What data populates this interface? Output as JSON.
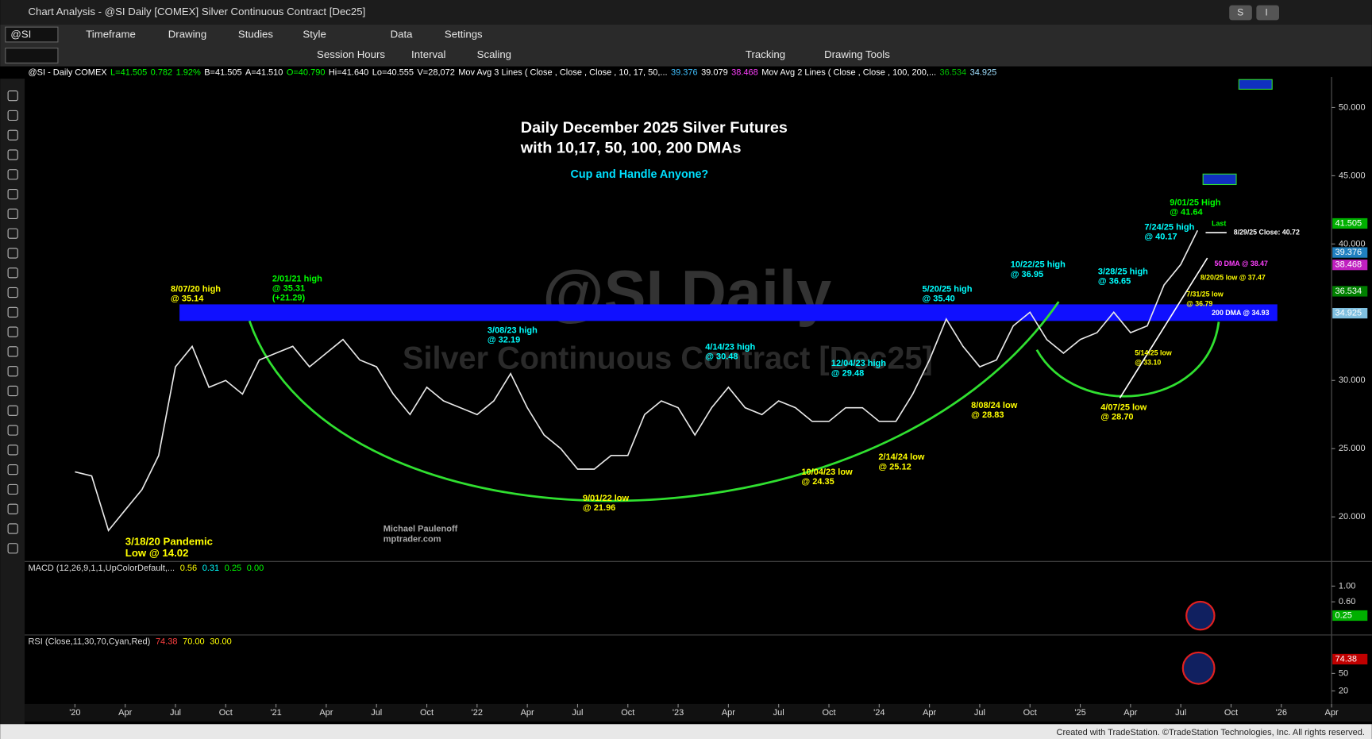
{
  "window": {
    "title": "Chart Analysis - @SI Daily [COMEX] Silver Continuous Contract [Dec25]",
    "buttons": [
      "S",
      "I"
    ],
    "footer": "Created with TradeStation. ©TradeStation Technologies, Inc. All rights reserved."
  },
  "toolbar": {
    "symbol": "@SI",
    "row1": [
      "Timeframe",
      "Drawing",
      "Studies",
      "Style",
      "Data",
      "Settings"
    ],
    "row2": [
      "Session Hours",
      "Interval",
      "Scaling",
      "Tracking",
      "Drawing Tools"
    ]
  },
  "info": [
    {
      "text": "@SI - Daily  COMEX",
      "color": "#ffffff"
    },
    {
      "text": "L=41.505",
      "color": "#00ff00"
    },
    {
      "text": "0.782",
      "color": "#00ff00"
    },
    {
      "text": "1.92%",
      "color": "#00ff00"
    },
    {
      "text": "B=41.505",
      "color": "#ffffff"
    },
    {
      "text": "A=41.510",
      "color": "#ffffff"
    },
    {
      "text": "O=40.790",
      "color": "#00ff00"
    },
    {
      "text": "Hi=41.640",
      "color": "#ffffff"
    },
    {
      "text": "Lo=40.555",
      "color": "#ffffff"
    },
    {
      "text": "V=28,072",
      "color": "#ffffff"
    },
    {
      "text": "Mov Avg 3 Lines (  Close ,  Close ,  Close ,  10, 17, 50,...",
      "color": "#ffffff"
    },
    {
      "text": "39.376",
      "color": "#40c0ff"
    },
    {
      "text": "39.079",
      "color": "#ffffff"
    },
    {
      "text": "38.468",
      "color": "#ff40ff"
    },
    {
      "text": "Mov Avg 2 Lines (        Close ,      Close ,  100, 200,...",
      "color": "#ffffff"
    },
    {
      "text": "36.534",
      "color": "#00c000"
    },
    {
      "text": "34.925",
      "color": "#a0e0ff"
    }
  ],
  "chart_data": {
    "type": "line",
    "title": "Daily December 2025 Silver Futures",
    "subtitle": "with 10,17, 50, 100, 200 DMAs",
    "question": "Cup and Handle Anyone?",
    "watermark": [
      "@SI Daily",
      "Silver Continuous Contract [Dec25]"
    ],
    "credit": [
      "Michael Paulenoff",
      "mptrader.com"
    ],
    "color": "#e8e8e8",
    "x": [
      "2020-01",
      "2020-02",
      "2020-03",
      "2020-04",
      "2020-05",
      "2020-06",
      "2020-07",
      "2020-08",
      "2020-09",
      "2020-10",
      "2020-11",
      "2020-12",
      "2021-01",
      "2021-02",
      "2021-03",
      "2021-04",
      "2021-05",
      "2021-06",
      "2021-07",
      "2021-08",
      "2021-09",
      "2021-10",
      "2021-11",
      "2021-12",
      "2022-01",
      "2022-02",
      "2022-03",
      "2022-04",
      "2022-05",
      "2022-06",
      "2022-07",
      "2022-08",
      "2022-09",
      "2022-10",
      "2022-11",
      "2022-12",
      "2023-01",
      "2023-02",
      "2023-03",
      "2023-04",
      "2023-05",
      "2023-06",
      "2023-07",
      "2023-08",
      "2023-09",
      "2023-10",
      "2023-11",
      "2023-12",
      "2024-01",
      "2024-02",
      "2024-03",
      "2024-04",
      "2024-05",
      "2024-06",
      "2024-07",
      "2024-08",
      "2024-09",
      "2024-10",
      "2024-11",
      "2024-12",
      "2025-01",
      "2025-02",
      "2025-03",
      "2025-04",
      "2025-05",
      "2025-06",
      "2025-07",
      "2025-08"
    ],
    "values": [
      23.3,
      23.0,
      19.0,
      20.5,
      22.0,
      24.5,
      31.0,
      32.5,
      29.5,
      30.0,
      29.0,
      31.5,
      32.0,
      32.5,
      31.0,
      32.0,
      33.0,
      31.5,
      31.0,
      29.0,
      27.5,
      29.5,
      28.5,
      28.0,
      27.5,
      28.5,
      30.5,
      28.0,
      26.0,
      25.0,
      23.5,
      23.5,
      24.5,
      24.5,
      27.5,
      28.5,
      28.0,
      26.0,
      28.0,
      29.5,
      28.0,
      27.5,
      28.5,
      28.0,
      27.0,
      27.0,
      28.0,
      28.0,
      27.0,
      27.0,
      29.0,
      31.5,
      34.5,
      32.5,
      31.0,
      31.5,
      34.0,
      35.0,
      33.0,
      32.0,
      33.0,
      33.5,
      35.0,
      33.5,
      34.0,
      37.0,
      38.5,
      41.0
    ],
    "xlim": [
      "2019-10",
      "2026-04"
    ],
    "xticks": [
      {
        "value": "2020-01",
        "label": "'20"
      },
      {
        "value": "2020-04",
        "label": "Apr"
      },
      {
        "value": "2020-07",
        "label": "Jul"
      },
      {
        "value": "2020-10",
        "label": "Oct"
      },
      {
        "value": "2021-01",
        "label": "'21"
      },
      {
        "value": "2021-04",
        "label": "Apr"
      },
      {
        "value": "2021-07",
        "label": "Jul"
      },
      {
        "value": "2021-10",
        "label": "Oct"
      },
      {
        "value": "2022-01",
        "label": "'22"
      },
      {
        "value": "2022-04",
        "label": "Apr"
      },
      {
        "value": "2022-07",
        "label": "Jul"
      },
      {
        "value": "2022-10",
        "label": "Oct"
      },
      {
        "value": "2023-01",
        "label": "'23"
      },
      {
        "value": "2023-04",
        "label": "Apr"
      },
      {
        "value": "2023-07",
        "label": "Jul"
      },
      {
        "value": "2023-10",
        "label": "Oct"
      },
      {
        "value": "2024-01",
        "label": "'24"
      },
      {
        "value": "2024-04",
        "label": "Apr"
      },
      {
        "value": "2024-07",
        "label": "Jul"
      },
      {
        "value": "2024-10",
        "label": "Oct"
      },
      {
        "value": "2025-01",
        "label": "'25"
      },
      {
        "value": "2025-04",
        "label": "Apr"
      },
      {
        "value": "2025-07",
        "label": "Jul"
      },
      {
        "value": "2025-10",
        "label": "Oct"
      },
      {
        "value": "2026-01",
        "label": "'26"
      },
      {
        "value": "2026-04",
        "label": "Apr"
      }
    ],
    "ylim": [
      16.86,
      52.24
    ],
    "yticks": [
      {
        "value": 20,
        "label": "20.000"
      },
      {
        "value": 25,
        "label": "25.000"
      },
      {
        "value": 30,
        "label": "30.000"
      },
      {
        "value": 40,
        "label": "40.000"
      },
      {
        "value": 45,
        "label": "45.000"
      },
      {
        "value": 50,
        "label": "50.000"
      }
    ],
    "price_markers": [
      {
        "value": 41.505,
        "color": "#00b000"
      },
      {
        "value": 39.376,
        "color": "#2080c0"
      },
      {
        "value": 38.468,
        "color": "#c020c0"
      },
      {
        "value": 36.534,
        "color": "#008000"
      },
      {
        "value": 34.925,
        "color": "#80c0e0"
      }
    ],
    "annotations": [
      {
        "lines": [
          "8/07/20 high",
          "@ 35.14"
        ],
        "color": "#ffff00"
      },
      {
        "lines": [
          "2/01/21 high",
          "@ 35.31",
          "(+21.29)"
        ],
        "color": "#00ff00"
      },
      {
        "lines": [
          "3/08/23 high",
          "@ 32.19"
        ],
        "color": "#00ffff"
      },
      {
        "lines": [
          "4/14/23 high",
          "@ 30.48"
        ],
        "color": "#00ffff"
      },
      {
        "lines": [
          "12/04/23 high",
          "@ 29.48"
        ],
        "color": "#00ffff"
      },
      {
        "lines": [
          "5/20/25 high",
          "@ 35.40"
        ],
        "color": "#00ffff"
      },
      {
        "lines": [
          "10/22/25 high",
          "@ 36.95"
        ],
        "color": "#00ffff"
      },
      {
        "lines": [
          "3/28/25 high",
          "@ 36.65"
        ],
        "color": "#00ffff"
      },
      {
        "lines": [
          "7/24/25 high",
          "@ 40.17"
        ],
        "color": "#00ffff"
      },
      {
        "lines": [
          "9/01/25 High",
          "@ 41.64"
        ],
        "color": "#00ff00"
      },
      {
        "lines": [
          "3/18/20 Pandemic",
          "Low @  14.02"
        ],
        "color": "#ffff00"
      },
      {
        "lines": [
          "9/01/22 low",
          "@ 21.96"
        ],
        "color": "#ffff00"
      },
      {
        "lines": [
          "10/04/23 low",
          "@ 24.35"
        ],
        "color": "#ffff00"
      },
      {
        "lines": [
          "2/14/24 low",
          "@ 25.12"
        ],
        "color": "#ffff00"
      },
      {
        "lines": [
          "8/08/24 low",
          "@ 28.83"
        ],
        "color": "#ffff00"
      },
      {
        "lines": [
          "4/07/25 low",
          "@ 28.70"
        ],
        "color": "#ffff00"
      },
      {
        "lines": [
          "5/14/25 low",
          "@ 33.10"
        ],
        "color": "#ffff00"
      },
      {
        "lines": [
          "7/31/25 low",
          "@ 36.79"
        ],
        "color": "#ffff00"
      },
      {
        "lines": [
          "8/20/25 low @ 37.47"
        ],
        "color": "#ffff00"
      },
      {
        "lines": [
          "50 DMA @ 38.47"
        ],
        "color": "#ff40ff"
      },
      {
        "lines": [
          "200 DMA @ 34.93"
        ],
        "color": "#ffffff"
      },
      {
        "lines": [
          "Last"
        ],
        "color": "#00ff00"
      },
      {
        "lines": [
          "8/29/25 Close: 40.72"
        ],
        "color": "#ffffff"
      }
    ]
  },
  "macd": {
    "label": "MACD (12,26,9,1,1,UpColorDefault,...",
    "values": [
      {
        "text": "0.56",
        "color": "#ffff00"
      },
      {
        "text": "0.31",
        "color": "#00ffff"
      },
      {
        "text": "0.25",
        "color": "#00ff00"
      },
      {
        "text": "0.00",
        "color": "#00ff00"
      }
    ],
    "ylim": [
      -0.22,
      1.56
    ],
    "yticks": [
      {
        "value": 1,
        "label": "1.00"
      },
      {
        "value": 0.6,
        "label": "0.60"
      }
    ],
    "marker": {
      "value": 0.25,
      "color": "#00b000"
    }
  },
  "rsi": {
    "label": "RSI (Close,11,30,70,Cyan,Red)",
    "values": [
      {
        "text": "74.38",
        "color": "#ff4040"
      },
      {
        "text": "70.00",
        "color": "#ffff00"
      },
      {
        "text": "30.00",
        "color": "#ffff00"
      }
    ],
    "ylim": [
      5,
      113
    ],
    "yticks": [
      50,
      20
    ],
    "marker": {
      "value": 74.38,
      "color": "#c00000"
    }
  }
}
